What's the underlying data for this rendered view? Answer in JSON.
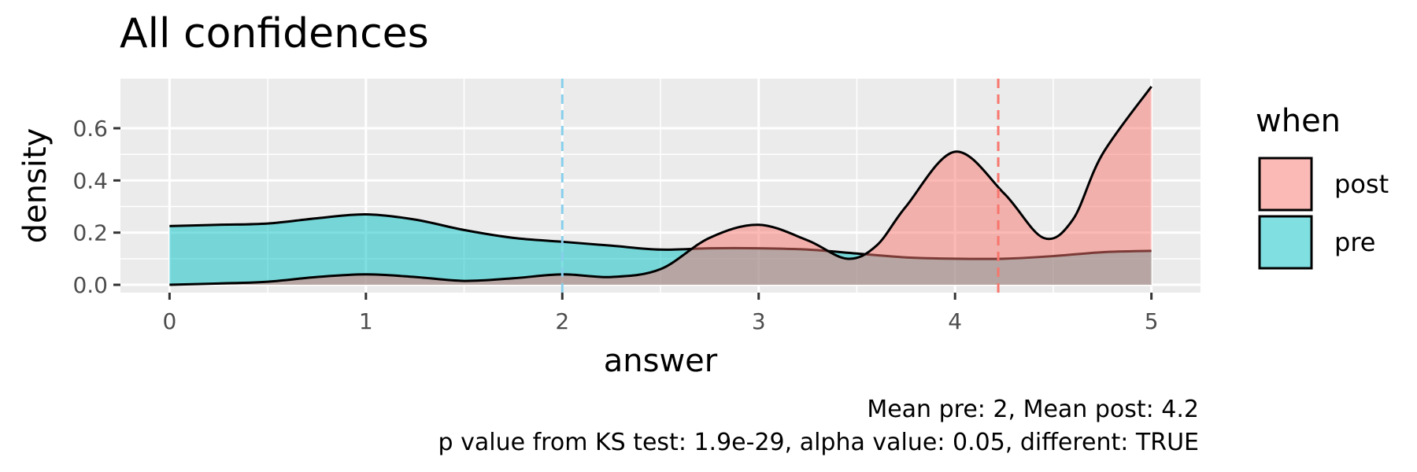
{
  "chart_data": {
    "type": "area",
    "title": "All confidences",
    "xlabel": "answer",
    "ylabel": "density",
    "xlim": [
      -0.25,
      5.25
    ],
    "ylim": [
      -0.03,
      0.79
    ],
    "x_ticks": [
      0,
      1,
      2,
      3,
      4,
      5
    ],
    "y_ticks": [
      0.0,
      0.2,
      0.4,
      0.6
    ],
    "y_tick_labels": [
      "0.0",
      "0.2",
      "0.4",
      "0.6"
    ],
    "grid": true,
    "legend": {
      "title": "when",
      "position": "right"
    },
    "series": [
      {
        "name": "post",
        "color": "#F8766D",
        "x": [
          0,
          0.25,
          0.5,
          0.75,
          1.0,
          1.25,
          1.5,
          1.75,
          2.0,
          2.25,
          2.5,
          2.75,
          3.0,
          3.25,
          3.45,
          3.6,
          3.75,
          4.0,
          4.25,
          4.45,
          4.6,
          4.75,
          5.0
        ],
        "y": [
          0.0,
          0.005,
          0.012,
          0.03,
          0.04,
          0.03,
          0.015,
          0.025,
          0.04,
          0.03,
          0.06,
          0.18,
          0.23,
          0.17,
          0.1,
          0.15,
          0.3,
          0.51,
          0.35,
          0.18,
          0.25,
          0.5,
          0.76
        ]
      },
      {
        "name": "pre",
        "color": "#00BFC4",
        "x": [
          0,
          0.25,
          0.5,
          0.75,
          1.0,
          1.25,
          1.5,
          1.75,
          2.0,
          2.25,
          2.5,
          2.75,
          3.0,
          3.25,
          3.5,
          3.75,
          4.0,
          4.25,
          4.5,
          4.75,
          5.0
        ],
        "y": [
          0.225,
          0.23,
          0.235,
          0.255,
          0.27,
          0.25,
          0.21,
          0.18,
          0.165,
          0.15,
          0.135,
          0.14,
          0.14,
          0.135,
          0.12,
          0.105,
          0.1,
          0.1,
          0.11,
          0.125,
          0.13
        ]
      }
    ],
    "reference_lines": [
      {
        "series": "pre",
        "x": 2.0,
        "color": "#87CEEB",
        "style": "dashed"
      },
      {
        "series": "post",
        "x": 4.22,
        "color": "#F8766D",
        "style": "dashed"
      }
    ],
    "caption_lines": [
      "Mean pre: 2, Mean post: 4.2",
      "p value from KS test: 1.9e-29, alpha value: 0.05, different: TRUE"
    ]
  }
}
